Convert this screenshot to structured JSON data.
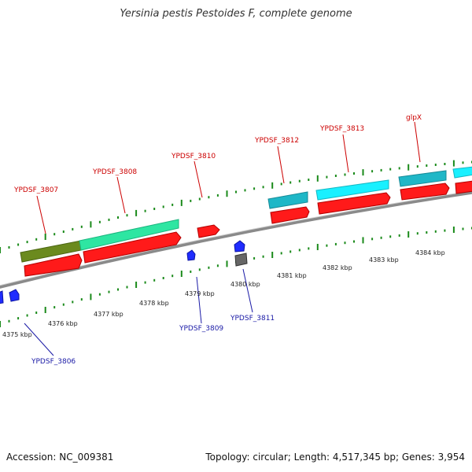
{
  "title": "Yersinia pestis Pestoides F, complete genome",
  "footer": {
    "accession": "Accession: NC_009381",
    "stats": "Topology: circular; Length: 4,517,345 bp; Genes: 3,954"
  },
  "colors": {
    "backbone": "#8a8a8a",
    "cds_red": "#ff1a1a",
    "gene_olive": "#6b8a1e",
    "gene_mint": "#2ee6a2",
    "gene_teal": "#1fb7c7",
    "gene_cyan": "#19f0ff",
    "small_blue": "#1f2cff",
    "small_gray": "#666666",
    "tick_green": "#1a8a1a"
  },
  "kbp_labels": [
    "4375 kbp",
    "4376 kbp",
    "4377 kbp",
    "4378 kbp",
    "4379 kbp",
    "4380 kbp",
    "4381 kbp",
    "4382 kbp",
    "4383 kbp",
    "4384 kbp"
  ],
  "top_labels": [
    "YPDSF_3807",
    "YPDSF_3808",
    "YPDSF_3810",
    "YPDSF_3812",
    "YPDSF_3813",
    "glpX"
  ],
  "bottom_labels": [
    "YPDSF_3806",
    "YPDSF_3809",
    "YPDSF_3811"
  ]
}
